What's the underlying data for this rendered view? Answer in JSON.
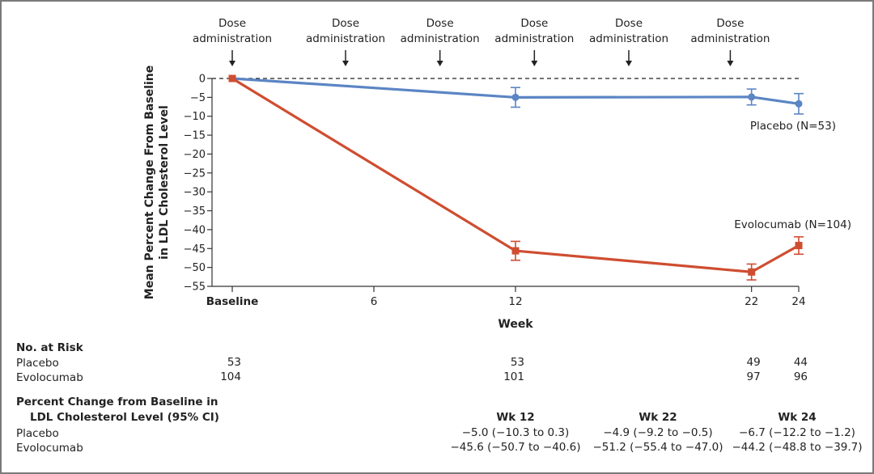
{
  "chart_data": {
    "type": "line",
    "title": "",
    "xlabel": "Week",
    "ylabel_lines": [
      "Mean Percent Change From Baseline",
      "in LDL Cholesterol Level"
    ],
    "x_ticks": [
      {
        "value": 0,
        "label": "Baseline",
        "bold": true
      },
      {
        "value": 6,
        "label": "6"
      },
      {
        "value": 12,
        "label": "12"
      },
      {
        "value": 22,
        "label": "22"
      },
      {
        "value": 24,
        "label": "24"
      }
    ],
    "xlim": [
      0,
      24
    ],
    "ylim": [
      -55,
      0
    ],
    "y_ticks": [
      0,
      -5,
      -10,
      -15,
      -20,
      -25,
      -30,
      -35,
      -40,
      -45,
      -50,
      -55
    ],
    "y_tick_labels": [
      "0",
      "−5",
      "−10",
      "−15",
      "−20",
      "−25",
      "−30",
      "−35",
      "−40",
      "−45",
      "−50",
      "−55"
    ],
    "reference_line": {
      "y": 0,
      "style": "dashed"
    },
    "annotations": {
      "dose_label_line1": "Dose",
      "dose_label_line2": "administration",
      "dose_weeks": [
        0,
        4.8,
        8.8,
        12.8,
        16.8,
        21.1
      ],
      "arrow": "↓"
    },
    "series": [
      {
        "name": "Placebo",
        "label": "Placebo (N=53)",
        "color": "#5b85c4",
        "marker": "circle",
        "x": [
          0,
          12,
          22,
          24
        ],
        "y": [
          0,
          -5.0,
          -4.9,
          -6.7
        ],
        "ci_low": [
          0,
          -10.3,
          -9.2,
          -12.2
        ],
        "ci_high": [
          0,
          0.3,
          -0.5,
          -1.2
        ],
        "errbar_low": [
          0,
          -7.6,
          -7.0,
          -9.4
        ],
        "errbar_high": [
          0,
          -2.4,
          -2.8,
          -4.0
        ]
      },
      {
        "name": "Evolocumab",
        "label": "Evolocumab (N=104)",
        "color": "#cf4d30",
        "marker": "square",
        "x": [
          0,
          12,
          22,
          24
        ],
        "y": [
          0,
          -45.6,
          -51.2,
          -44.2
        ],
        "ci_low": [
          0,
          -50.7,
          -55.4,
          -48.8
        ],
        "ci_high": [
          0,
          -40.6,
          -47.0,
          -39.7
        ],
        "errbar_low": [
          0,
          -48.1,
          -53.3,
          -46.5
        ],
        "errbar_high": [
          0,
          -43.1,
          -49.1,
          -41.9
        ]
      }
    ]
  },
  "at_risk": {
    "heading": "No. at Risk",
    "rows": [
      {
        "label": "Placebo",
        "values": [
          {
            "week": 0,
            "n": "53"
          },
          {
            "week": 12,
            "n": "53"
          },
          {
            "week": 22,
            "n": "49"
          },
          {
            "week": 24,
            "n": "44"
          }
        ]
      },
      {
        "label": "Evolocumab",
        "values": [
          {
            "week": 0,
            "n": "104"
          },
          {
            "week": 12,
            "n": "101"
          },
          {
            "week": 22,
            "n": "97"
          },
          {
            "week": 24,
            "n": "96"
          }
        ]
      }
    ]
  },
  "pct_change": {
    "heading_line1": "Percent Change from Baseline in",
    "heading_line2": "LDL Cholesterol Level (95% CI)",
    "columns": [
      "Wk 12",
      "Wk 22",
      "Wk 24"
    ],
    "rows": [
      {
        "label": "Placebo",
        "values": [
          "−5.0 (−10.3 to 0.3)",
          "−4.9 (−9.2 to −0.5)",
          "−6.7 (−12.2 to −1.2)"
        ]
      },
      {
        "label": "Evolocumab",
        "values": [
          "−45.6 (−50.7 to −40.6)",
          "−51.2 (−55.4 to −47.0)",
          "−44.2 (−48.8 to −39.7)"
        ]
      }
    ]
  }
}
